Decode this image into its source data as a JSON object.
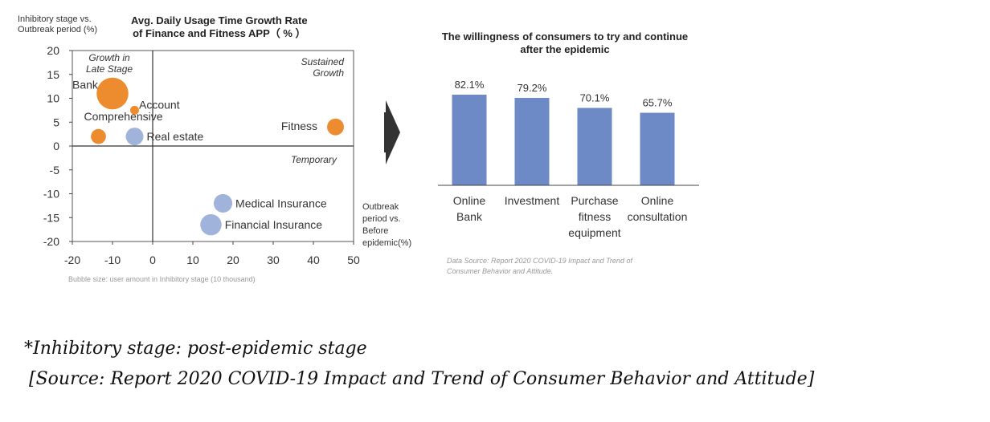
{
  "bubble_chart": {
    "title_line1": "Avg. Daily Usage Time Growth Rate",
    "title_line2": "of Finance and Fitness APP（ % ）",
    "ylabel_line1": "Inhibitory stage vs.",
    "ylabel_line2": "Outbreak period (%)",
    "xlabel_line1": "Outbreak",
    "xlabel_line2": "period vs.",
    "xlabel_line3": "Before",
    "xlabel_line4": "epidemic(%)",
    "quadrants": {
      "top_left_1": "Growth in",
      "top_left_2": "Late Stage",
      "top_right_1": "Sustained",
      "top_right_2": "Growth",
      "bottom_right": "Temporary"
    },
    "note": "Bubble size: user amount in Inhibitory stage (10 thousand)",
    "colors": {
      "orange": "#ED8C2E",
      "blue": "#9FB3DB"
    }
  },
  "bar_chart": {
    "title_line1": "The willingness of consumers to try and continue",
    "title_line2": "after the epidemic",
    "source_line1": "Data Source: Report 2020 COVID-19 Impact and Trend of",
    "source_line2": "Consumer Behavior and Attitude.",
    "value_labels": [
      "82.1%",
      "79.2%",
      "70.1%",
      "65.7%"
    ],
    "category_lines": [
      [
        "Online",
        "Bank"
      ],
      [
        "Investment"
      ],
      [
        "Purchase",
        "fitness",
        "equipment"
      ],
      [
        "Online",
        "consultation"
      ]
    ],
    "bar_color": "#6D89C6"
  },
  "footnotes": {
    "line1": "*Inhibitory stage: post-epidemic stage",
    "line2": "[Source: Report 2020 COVID-19 Impact and Trend of Consumer Behavior and Attitude]"
  },
  "chart_data": [
    {
      "type": "scatter",
      "title": "Avg. Daily Usage Time Growth Rate of Finance and Fitness APP（ % ）",
      "xlabel": "Outbreak period vs. Before epidemic(%)",
      "ylabel": "Inhibitory stage vs. Outbreak period (%)",
      "xlim": [
        -20,
        50
      ],
      "ylim": [
        -20,
        20
      ],
      "xticks": [
        -20,
        -10,
        0,
        10,
        20,
        30,
        40,
        50
      ],
      "yticks": [
        20,
        15,
        10,
        5,
        0,
        -5,
        -10,
        -15,
        -20
      ],
      "points": [
        {
          "label": "Bank",
          "x": -10,
          "y": 11,
          "size": 3.6,
          "color": "orange"
        },
        {
          "label": "Account",
          "x": -4.5,
          "y": 7.5,
          "size": 1,
          "color": "orange"
        },
        {
          "label": "Comprehensive",
          "x": -13.5,
          "y": 2,
          "size": 1.7,
          "color": "orange"
        },
        {
          "label": "Real estate",
          "x": -4.5,
          "y": 2,
          "size": 2,
          "color": "blue"
        },
        {
          "label": "Fitness",
          "x": 45.5,
          "y": 4,
          "size": 1.9,
          "color": "orange"
        },
        {
          "label": "Medical Insurance",
          "x": 17.5,
          "y": -12,
          "size": 2.1,
          "color": "blue"
        },
        {
          "label": "Financial Insurance",
          "x": 14.5,
          "y": -16.5,
          "size": 2.4,
          "color": "blue"
        }
      ]
    },
    {
      "type": "bar",
      "title": "The willingness of consumers to try and continue after the epidemic",
      "categories": [
        "Online Bank",
        "Investment",
        "Purchase fitness equipment",
        "Online consultation"
      ],
      "values": [
        82.1,
        79.2,
        70.1,
        65.7
      ],
      "ylim": [
        0,
        100
      ]
    }
  ]
}
